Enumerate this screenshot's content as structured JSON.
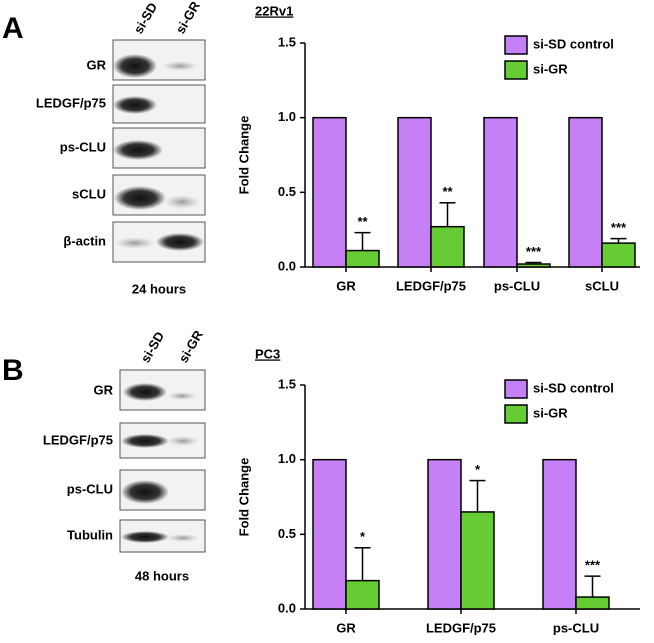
{
  "panels": [
    {
      "letter": "A",
      "lanes": [
        "si-SD",
        "si-GR"
      ],
      "rows": [
        "GR",
        "LEDGF/p75",
        "ps-CLU",
        "sCLU",
        "β-actin"
      ],
      "caption": "24 hours"
    },
    {
      "letter": "B",
      "lanes": [
        "si-SD",
        "si-GR"
      ],
      "rows": [
        "GR",
        "LEDGF/p75",
        "ps-CLU",
        "Tubulin"
      ],
      "caption": "48 hours"
    }
  ],
  "chart_data": [
    {
      "type": "bar",
      "title": "22Rv1",
      "y_label": "Fold Change",
      "categories": [
        "GR",
        "LEDGF/p75",
        "ps-CLU",
        "sCLU"
      ],
      "series": [
        {
          "name": "si-SD control",
          "color": "#c580f5",
          "values": [
            1,
            1,
            1,
            1
          ]
        },
        {
          "name": "si-GR",
          "color": "#66cc33",
          "values": [
            0.11,
            0.27,
            0.02,
            0.16
          ],
          "errors": [
            0.12,
            0.16,
            0.01,
            0.03
          ]
        }
      ],
      "annotations": [
        "**",
        "**",
        "***",
        "***"
      ],
      "ylim": [
        0,
        1.5
      ],
      "yticks": [
        {
          "value": 0,
          "label": "0.0"
        },
        {
          "value": 0.5,
          "label": "0.5"
        },
        {
          "value": 1,
          "label": "1.0"
        },
        {
          "value": 1.5,
          "label": "1.5"
        }
      ],
      "legend": "upper right"
    },
    {
      "type": "bar",
      "title": "PC3",
      "y_label": "Fold Change",
      "categories": [
        "GR",
        "LEDGF/p75",
        "ps-CLU"
      ],
      "series": [
        {
          "name": "si-SD control",
          "color": "#c580f5",
          "values": [
            1,
            1,
            1
          ]
        },
        {
          "name": "si-GR",
          "color": "#66cc33",
          "values": [
            0.19,
            0.65,
            0.08
          ],
          "errors": [
            0.22,
            0.21,
            0.14
          ]
        }
      ],
      "annotations": [
        "*",
        "*",
        "***"
      ],
      "ylim": [
        0,
        1.5
      ],
      "yticks": [
        {
          "value": 0,
          "label": "0.0"
        },
        {
          "value": 0.5,
          "label": "0.5"
        },
        {
          "value": 1,
          "label": "1.0"
        },
        {
          "value": 1.5,
          "label": "1.5"
        }
      ],
      "legend": "upper right"
    }
  ]
}
